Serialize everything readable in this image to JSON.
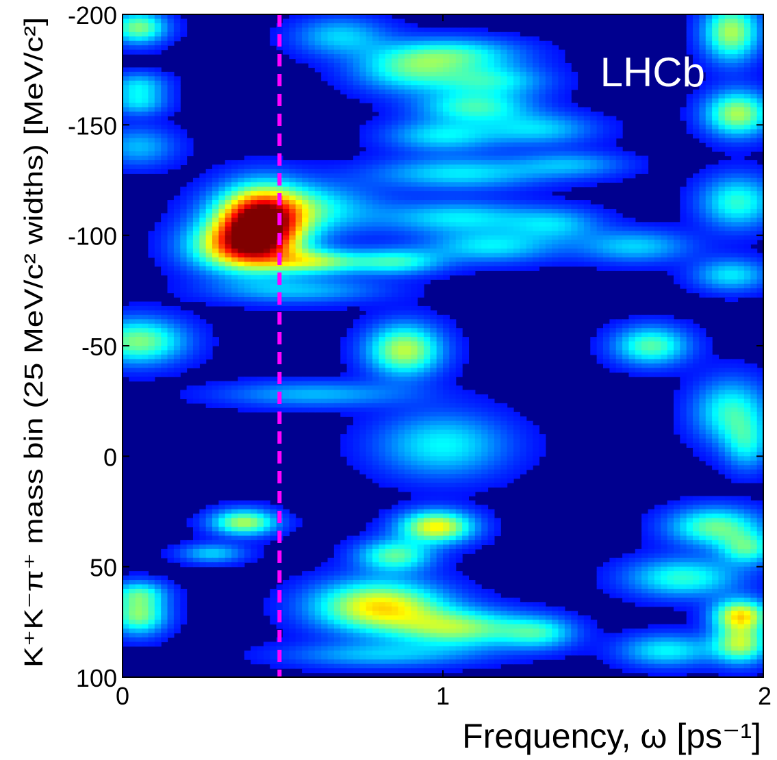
{
  "chart_data": {
    "type": "heatmap",
    "title": "",
    "watermark": "LHCb",
    "xlabel": "Frequency, ω [ps⁻¹]",
    "ylabel": "K⁺K⁻π⁺ mass bin (25 MeV/c² widths) [MeV/c²]",
    "xlim": [
      0,
      2
    ],
    "ylim": [
      100,
      -200
    ],
    "y_inverted": true,
    "xticks": [
      "0",
      "1",
      "2"
    ],
    "yticks": [
      "-200",
      "-150",
      "-100",
      "-50",
      "0",
      "50",
      "100"
    ],
    "colormap": "jet",
    "background_color": "#00008f",
    "reference_line": {
      "x": 0.49,
      "color": "#ff00ff",
      "style": "dashed"
    },
    "hotspots": [
      {
        "x": 0.05,
        "y": -194,
        "sx": 0.06,
        "sy": 5,
        "v": 0.45
      },
      {
        "x": 0.05,
        "y": -168,
        "sx": 0.06,
        "sy": 4,
        "v": 0.25
      },
      {
        "x": 0.05,
        "y": -160,
        "sx": 0.06,
        "sy": 4,
        "v": 0.25
      },
      {
        "x": 0.05,
        "y": -140,
        "sx": 0.08,
        "sy": 6,
        "v": 0.22
      },
      {
        "x": 0.43,
        "y": -105,
        "sx": 0.09,
        "sy": 11,
        "v": 0.95
      },
      {
        "x": 0.36,
        "y": -95,
        "sx": 0.11,
        "sy": 8,
        "v": 0.6
      },
      {
        "x": 0.55,
        "y": -112,
        "sx": 0.16,
        "sy": 8,
        "v": 0.35
      },
      {
        "x": 0.6,
        "y": -88,
        "sx": 0.1,
        "sy": 4,
        "v": 0.45
      },
      {
        "x": 0.85,
        "y": -88,
        "sx": 0.1,
        "sy": 4,
        "v": 0.35
      },
      {
        "x": 0.55,
        "y": -75,
        "sx": 0.18,
        "sy": 4,
        "v": 0.22
      },
      {
        "x": 0.68,
        "y": -190,
        "sx": 0.1,
        "sy": 6,
        "v": 0.25
      },
      {
        "x": 0.9,
        "y": -175,
        "sx": 0.12,
        "sy": 7,
        "v": 0.35
      },
      {
        "x": 1.05,
        "y": -182,
        "sx": 0.14,
        "sy": 5,
        "v": 0.3
      },
      {
        "x": 1.15,
        "y": -170,
        "sx": 0.12,
        "sy": 5,
        "v": 0.3
      },
      {
        "x": 1.1,
        "y": -158,
        "sx": 0.12,
        "sy": 5,
        "v": 0.35
      },
      {
        "x": 1.0,
        "y": -145,
        "sx": 0.12,
        "sy": 5,
        "v": 0.28
      },
      {
        "x": 1.3,
        "y": -148,
        "sx": 0.12,
        "sy": 5,
        "v": 0.25
      },
      {
        "x": 1.05,
        "y": -128,
        "sx": 0.18,
        "sy": 5,
        "v": 0.28
      },
      {
        "x": 1.05,
        "y": -108,
        "sx": 0.16,
        "sy": 5,
        "v": 0.28
      },
      {
        "x": 1.15,
        "y": -95,
        "sx": 0.14,
        "sy": 5,
        "v": 0.28
      },
      {
        "x": 1.35,
        "y": -105,
        "sx": 0.1,
        "sy": 5,
        "v": 0.22
      },
      {
        "x": 1.4,
        "y": -132,
        "sx": 0.12,
        "sy": 4,
        "v": 0.2
      },
      {
        "x": 1.6,
        "y": -95,
        "sx": 0.12,
        "sy": 5,
        "v": 0.25
      },
      {
        "x": 1.9,
        "y": -192,
        "sx": 0.06,
        "sy": 9,
        "v": 0.5
      },
      {
        "x": 1.92,
        "y": -155,
        "sx": 0.07,
        "sy": 7,
        "v": 0.5
      },
      {
        "x": 1.92,
        "y": -115,
        "sx": 0.08,
        "sy": 8,
        "v": 0.35
      },
      {
        "x": 1.9,
        "y": -82,
        "sx": 0.08,
        "sy": 5,
        "v": 0.28
      },
      {
        "x": 0.05,
        "y": -52,
        "sx": 0.1,
        "sy": 7,
        "v": 0.45
      },
      {
        "x": 0.88,
        "y": -48,
        "sx": 0.08,
        "sy": 8,
        "v": 0.52
      },
      {
        "x": 1.65,
        "y": -50,
        "sx": 0.08,
        "sy": 6,
        "v": 0.4
      },
      {
        "x": 0.6,
        "y": -28,
        "sx": 0.2,
        "sy": 4,
        "v": 0.22
      },
      {
        "x": 1.0,
        "y": -5,
        "sx": 0.14,
        "sy": 10,
        "v": 0.3
      },
      {
        "x": 1.9,
        "y": -20,
        "sx": 0.08,
        "sy": 10,
        "v": 0.35
      },
      {
        "x": 1.95,
        "y": -5,
        "sx": 0.05,
        "sy": 8,
        "v": 0.25
      },
      {
        "x": 0.38,
        "y": 30,
        "sx": 0.07,
        "sy": 4,
        "v": 0.5
      },
      {
        "x": 0.28,
        "y": 44,
        "sx": 0.07,
        "sy": 3,
        "v": 0.25
      },
      {
        "x": 0.98,
        "y": 32,
        "sx": 0.08,
        "sy": 5,
        "v": 0.6
      },
      {
        "x": 0.85,
        "y": 45,
        "sx": 0.08,
        "sy": 5,
        "v": 0.4
      },
      {
        "x": 1.85,
        "y": 32,
        "sx": 0.1,
        "sy": 6,
        "v": 0.42
      },
      {
        "x": 1.95,
        "y": 42,
        "sx": 0.06,
        "sy": 5,
        "v": 0.35
      },
      {
        "x": 1.75,
        "y": 55,
        "sx": 0.12,
        "sy": 6,
        "v": 0.35
      },
      {
        "x": 0.05,
        "y": 62,
        "sx": 0.06,
        "sy": 4,
        "v": 0.3
      },
      {
        "x": 0.05,
        "y": 72,
        "sx": 0.06,
        "sy": 6,
        "v": 0.45
      },
      {
        "x": 0.8,
        "y": 68,
        "sx": 0.14,
        "sy": 8,
        "v": 0.62
      },
      {
        "x": 1.05,
        "y": 78,
        "sx": 0.14,
        "sy": 6,
        "v": 0.45
      },
      {
        "x": 1.3,
        "y": 80,
        "sx": 0.08,
        "sy": 5,
        "v": 0.3
      },
      {
        "x": 1.93,
        "y": 72,
        "sx": 0.06,
        "sy": 5,
        "v": 0.6
      },
      {
        "x": 1.93,
        "y": 85,
        "sx": 0.06,
        "sy": 6,
        "v": 0.5
      },
      {
        "x": 1.7,
        "y": 88,
        "sx": 0.1,
        "sy": 5,
        "v": 0.3
      },
      {
        "x": 0.8,
        "y": 90,
        "sx": 0.2,
        "sy": 4,
        "v": 0.22
      }
    ]
  }
}
